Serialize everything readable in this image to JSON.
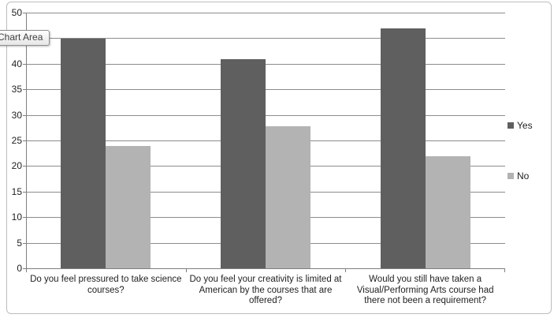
{
  "tooltip": {
    "label": "Chart Area"
  },
  "chart_data": {
    "type": "bar",
    "title": "",
    "xlabel": "",
    "ylabel": "",
    "categories": [
      "Do you feel pressured to take science courses?",
      "Do you feel your creativity is limited at American by the courses that are offered?",
      "Would you still have taken a Visual/Performing Arts course had there not been a requirement?"
    ],
    "series": [
      {
        "name": "Yes",
        "color": "#5f5f5f",
        "values": [
          45,
          41,
          47
        ]
      },
      {
        "name": "No",
        "color": "#b3b3b3",
        "values": [
          24,
          28,
          22
        ]
      }
    ],
    "ylim": [
      0,
      50
    ],
    "yticks": [
      0,
      5,
      10,
      15,
      20,
      25,
      30,
      35,
      40,
      45,
      50
    ],
    "grid": true,
    "legend_position": "right"
  },
  "colors": {
    "bar_yes": "#5f5f5f",
    "bar_no": "#b3b3b3",
    "gridline": "#8c8c8c",
    "axis": "#7f7f7f",
    "text": "#1f1f1f",
    "frame_border": "#bdbdbd"
  }
}
